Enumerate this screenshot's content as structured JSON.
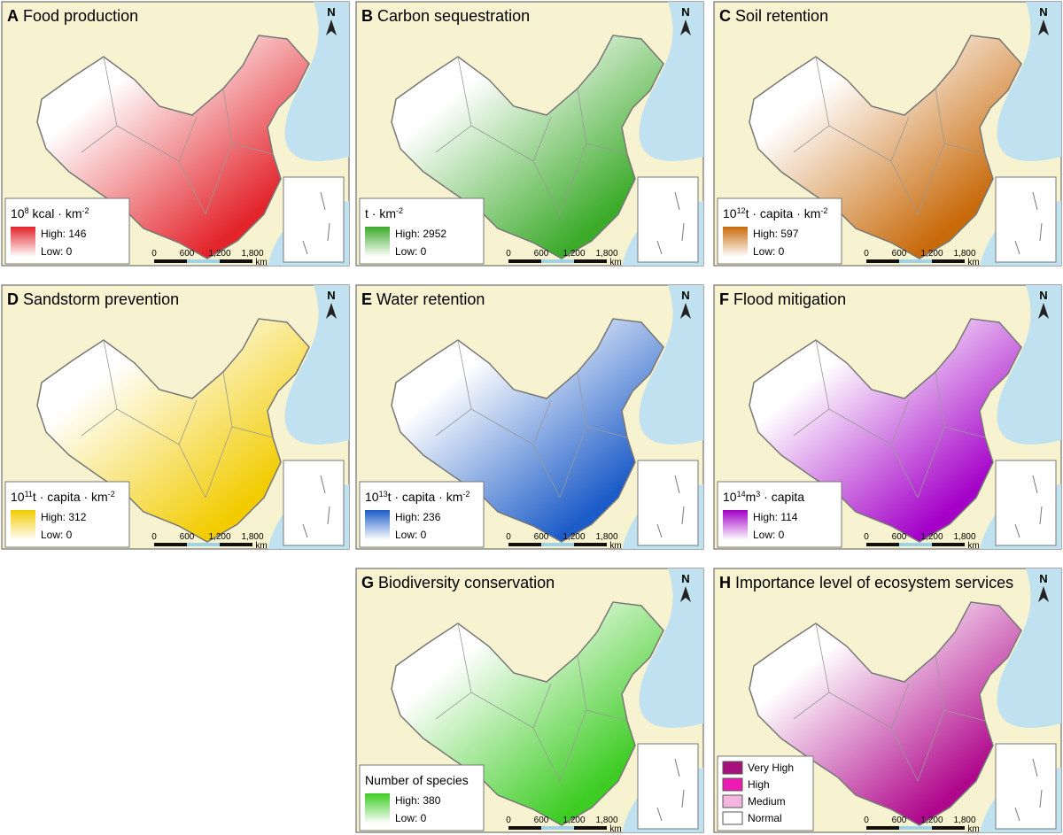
{
  "north": "N",
  "scale_bar": [
    "0",
    "600",
    "1,200",
    "1,800",
    "km"
  ],
  "panels": [
    {
      "letter": "A",
      "title": "Food production",
      "color": "#e3242b",
      "unit": [
        {
          "text": "10"
        },
        {
          "sup": "8"
        },
        {
          "text": " kcal · km"
        },
        {
          "sup": "-2"
        }
      ],
      "high": "High: 146",
      "low": "Low: 0"
    },
    {
      "letter": "B",
      "title": "Carbon sequestration",
      "color": "#3cab2a",
      "unit": [
        {
          "text": "t · km"
        },
        {
          "sup": "-2"
        }
      ],
      "high": "High: 2952",
      "low": "Low: 0"
    },
    {
      "letter": "C",
      "title": "Soil retention",
      "color": "#c86a0a",
      "unit": [
        {
          "text": "10"
        },
        {
          "sup": "12"
        },
        {
          "text": "t · capita · km"
        },
        {
          "sup": "-2"
        }
      ],
      "high": "High: 597",
      "low": "Low: 0"
    },
    {
      "letter": "D",
      "title": "Sandstorm prevention",
      "color": "#f2cc00",
      "unit": [
        {
          "text": "10"
        },
        {
          "sup": "11"
        },
        {
          "text": "t · capita · km"
        },
        {
          "sup": "-2"
        }
      ],
      "high": "High: 312",
      "low": "Low: 0"
    },
    {
      "letter": "E",
      "title": "Water retention",
      "color": "#1c5cc8",
      "unit": [
        {
          "text": "10"
        },
        {
          "sup": "13"
        },
        {
          "text": "t · capita · km"
        },
        {
          "sup": "-2"
        }
      ],
      "high": "High: 236",
      "low": "Low: 0"
    },
    {
      "letter": "F",
      "title": "Flood mitigation",
      "color": "#a400c8",
      "unit": [
        {
          "text": "10"
        },
        {
          "sup": "14"
        },
        {
          "text": "m"
        },
        {
          "sup": "3"
        },
        {
          "text": " · capita"
        }
      ],
      "high": "High: 114",
      "low": "Low: 0"
    },
    {
      "letter": "G",
      "title": "Biodiversity conservation",
      "color": "#3ccc22",
      "unit": [
        {
          "text": "Number of species"
        }
      ],
      "high": "High: 380",
      "low": "Low: 0"
    },
    {
      "letter": "H",
      "title": "Importance level of ecosystem services",
      "color": "#b0088c",
      "levels": [
        {
          "name": "Very High",
          "color": "#a6117e"
        },
        {
          "name": "High",
          "color": "#ee1ab4"
        },
        {
          "name": "Medium",
          "color": "#f4b6de"
        },
        {
          "name": "Normal",
          "color": "#ffffff"
        }
      ]
    }
  ]
}
